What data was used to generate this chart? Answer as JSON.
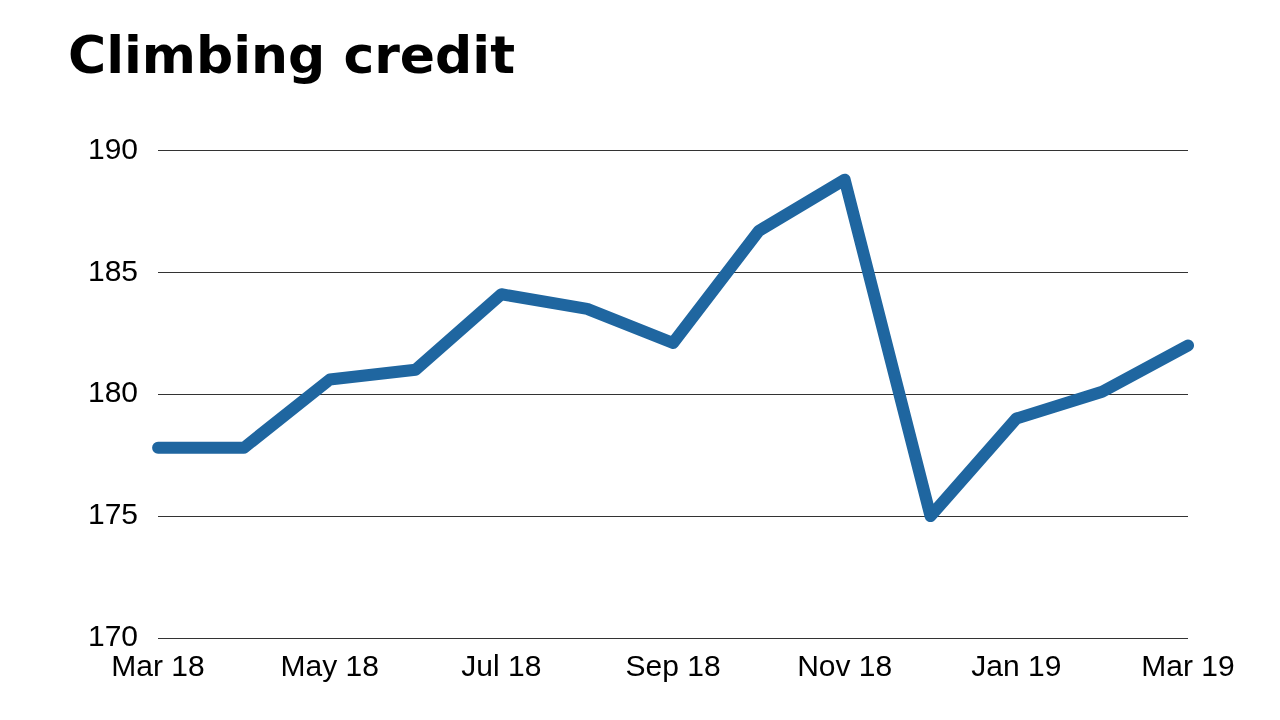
{
  "chart_data": {
    "type": "line",
    "title": "Climbing credit",
    "categories": [
      "Mar 18",
      null,
      "May 18",
      null,
      "Jul 18",
      null,
      "Sep 18",
      null,
      "Nov 18",
      null,
      "Jan 19",
      null,
      "Mar 19"
    ],
    "series": [
      {
        "color": "#1f66a0",
        "values": [
          177.8,
          177.8,
          180.6,
          181.0,
          184.1,
          183.5,
          182.1,
          186.7,
          188.8,
          175.0,
          179.0,
          180.1,
          182.0
        ]
      }
    ],
    "ylim": [
      170,
      190
    ],
    "yticks": [
      170,
      175,
      180,
      185,
      190
    ],
    "grid": "y",
    "legend": false,
    "marker": "none",
    "line_style": "solid"
  }
}
